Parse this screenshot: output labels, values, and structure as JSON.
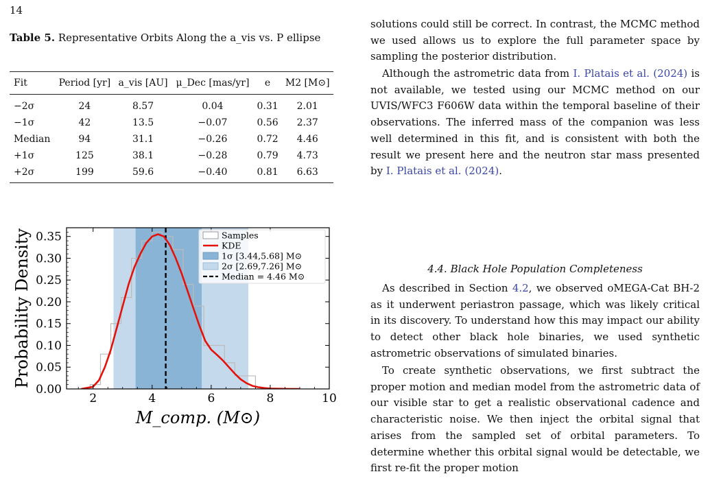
{
  "page_number": "14",
  "table": {
    "caption_label": "Table 5.",
    "caption_text": "Representative Orbits Along the a_vis vs. P ellipse",
    "headers": [
      "Fit",
      "Period [yr]",
      "a_vis [AU]",
      "μ_Dec [mas/yr]",
      "e",
      "M2 [M⊙]"
    ],
    "rows": [
      [
        "−2σ",
        "24",
        "8.57",
        "0.04",
        "0.31",
        "2.01"
      ],
      [
        "−1σ",
        "42",
        "13.5",
        "−0.07",
        "0.56",
        "2.37"
      ],
      [
        "Median",
        "94",
        "31.1",
        "−0.26",
        "0.72",
        "4.46"
      ],
      [
        "+1σ",
        "125",
        "38.1",
        "−0.28",
        "0.79",
        "4.73"
      ],
      [
        "+2σ",
        "199",
        "59.6",
        "−0.40",
        "0.81",
        "6.63"
      ]
    ]
  },
  "chart_data": {
    "type": "histogram+line",
    "ylabel": "Probability Density",
    "xlabel": "M_comp. (M⊙)",
    "xlim": [
      1.1,
      10
    ],
    "ylim": [
      0,
      0.37
    ],
    "xticks": [
      2,
      4,
      6,
      8,
      10
    ],
    "yticks": [
      0.0,
      0.05,
      0.1,
      0.15,
      0.2,
      0.25,
      0.3,
      0.35
    ],
    "ytick_labels": [
      "0.00",
      "0.05",
      "0.10",
      "0.15",
      "0.20",
      "0.25",
      "0.30",
      "0.35"
    ],
    "legend_position": "top-right",
    "legend": [
      "Samples",
      "KDE",
      "1σ  [3.44,5.68] M⊙",
      "2σ  [2.69,7.26] M⊙",
      "Median = 4.46 M⊙"
    ],
    "bands": {
      "sigma1": [
        3.44,
        5.68
      ],
      "sigma2": [
        2.69,
        7.26
      ]
    },
    "median": 4.46,
    "histogram": {
      "edges": [
        1.9,
        2.25,
        2.6,
        2.95,
        3.3,
        3.65,
        4.0,
        4.35,
        4.7,
        5.05,
        5.4,
        5.75,
        6.1,
        6.45,
        6.8,
        7.15,
        7.5
      ],
      "values": [
        0.01,
        0.08,
        0.15,
        0.21,
        0.3,
        0.34,
        0.36,
        0.35,
        0.32,
        0.24,
        0.19,
        0.1,
        0.1,
        0.06,
        0.03,
        0.03
      ]
    },
    "kde": {
      "x": [
        1.6,
        2.0,
        2.2,
        2.4,
        2.6,
        2.8,
        3.0,
        3.2,
        3.4,
        3.6,
        3.8,
        4.0,
        4.2,
        4.4,
        4.6,
        4.8,
        5.0,
        5.2,
        5.4,
        5.6,
        5.8,
        6.0,
        6.2,
        6.4,
        6.6,
        6.8,
        7.0,
        7.2,
        7.4,
        7.6,
        7.8,
        8.0,
        8.3,
        8.6,
        9.0
      ],
      "y": [
        0.0,
        0.005,
        0.02,
        0.05,
        0.09,
        0.14,
        0.19,
        0.24,
        0.28,
        0.31,
        0.335,
        0.35,
        0.355,
        0.35,
        0.33,
        0.3,
        0.265,
        0.225,
        0.185,
        0.145,
        0.11,
        0.09,
        0.078,
        0.065,
        0.05,
        0.035,
        0.022,
        0.013,
        0.007,
        0.004,
        0.002,
        0.001,
        0.0005,
        0.0002,
        0.0
      ]
    },
    "colors": {
      "kde": "#e3120b",
      "sigma1": "#8ab4d6",
      "sigma2": "#c4d9ec",
      "median": "#000000",
      "hist_edge": "#bbbbbb"
    }
  },
  "column_right": {
    "p1": "solutions could still be correct. In contrast, the MCMC method we used allows us to explore the full parameter space by sampling the posterior distribution.",
    "p2_a": "Although the astrometric data from ",
    "p2_cite1": "I. Platais et al. (2024)",
    "p2_b": " is not available, we tested using our MCMC method on our UVIS/WFC3 F606W data within the temporal baseline of their observations. The inferred mass of the companion was less well determined in this fit, and is consistent with both the result we present here and the neutron star mass presented by ",
    "p2_cite2": "I. Platais et al. (2024)",
    "p2_c": ".",
    "section_heading": "4.4. Black Hole Population Completeness",
    "p3_a": "As described in Section ",
    "p3_ref": "4.2",
    "p3_b": ", we observed oMEGA-Cat BH-2 as it underwent periastron passage, which was likely critical in its discovery. To understand how this may impact our ability to detect other black hole binaries, we used synthetic astrometric observations of simulated binaries.",
    "p4": "To create synthetic observations, we first subtract the proper motion and median model from the astrometric data of our visible star to get a realistic observational cadence and characteristic noise. We then inject the orbital signal that arises from the sampled set of orbital parameters. To determine whether this orbital signal would be detectable, we first re-fit the proper motion"
  }
}
